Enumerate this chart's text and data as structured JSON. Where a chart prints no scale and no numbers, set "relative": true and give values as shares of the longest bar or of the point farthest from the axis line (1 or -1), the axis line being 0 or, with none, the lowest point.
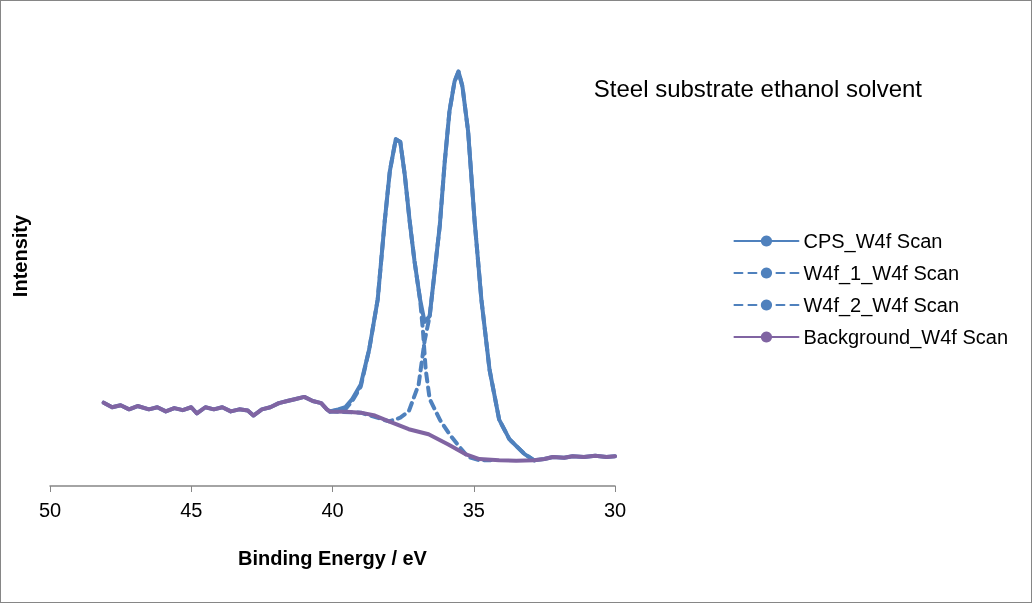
{
  "chart_data": {
    "type": "line",
    "title": "Steel substrate ethanol solvent",
    "xlabel": "Binding Energy / eV",
    "ylabel": "Intensity",
    "relative": true,
    "xlim": [
      50,
      30
    ],
    "xticks": [
      50,
      45,
      40,
      35,
      30
    ],
    "grid": false,
    "legend": "right",
    "marker": "none",
    "series": [
      {
        "name": "CPS_W4f Scan",
        "color": "#4f81bd",
        "line_style": "solid",
        "x": [
          48.1,
          47.8,
          47.5,
          47.2,
          46.9,
          46.5,
          46.2,
          45.9,
          45.6,
          45.3,
          45.0,
          44.8,
          44.5,
          44.2,
          43.9,
          43.6,
          43.3,
          43.0,
          42.8,
          42.5,
          42.2,
          41.9,
          41.6,
          41.3,
          41.0,
          40.7,
          40.4,
          40.2,
          40.1,
          39.8,
          39.55,
          39.3,
          39.0,
          38.7,
          38.4,
          38.15,
          37.97,
          37.76,
          37.6,
          37.44,
          37.27,
          37.1,
          36.9,
          36.74,
          36.56,
          36.38,
          36.2,
          36.03,
          35.86,
          35.68,
          35.54,
          35.4,
          35.2,
          34.97,
          34.73,
          34.44,
          34.1,
          33.74,
          33.2,
          32.86,
          32.5,
          32.2,
          31.8,
          31.5,
          31.1,
          30.7,
          30.3,
          30.0
        ],
        "values": [
          0.201,
          0.19,
          0.195,
          0.185,
          0.193,
          0.185,
          0.19,
          0.18,
          0.188,
          0.183,
          0.19,
          0.175,
          0.19,
          0.185,
          0.19,
          0.18,
          0.185,
          0.182,
          0.17,
          0.185,
          0.19,
          0.2,
          0.205,
          0.21,
          0.215,
          0.205,
          0.2,
          0.185,
          0.18,
          0.185,
          0.19,
          0.21,
          0.245,
          0.33,
          0.45,
          0.64,
          0.76,
          0.837,
          0.83,
          0.75,
          0.64,
          0.544,
          0.45,
          0.396,
          0.41,
          0.52,
          0.63,
          0.78,
          0.904,
          0.976,
          1,
          0.964,
          0.856,
          0.64,
          0.45,
          0.28,
          0.16,
          0.113,
          0.077,
          0.062,
          0.065,
          0.07,
          0.068,
          0.072,
          0.07,
          0.073,
          0.07,
          0.072
        ]
      },
      {
        "name": "W4f_1_W4f Scan",
        "color": "#4f81bd",
        "line_style": "dashed",
        "x": [
          40.1,
          39.55,
          39.3,
          39.0,
          38.7,
          38.4,
          38.15,
          37.97,
          37.76,
          37.6,
          37.44,
          37.27,
          37.1,
          36.9,
          36.8,
          36.7,
          36.56,
          36.2,
          35.86,
          35.5,
          35.2,
          34.8,
          34.4
        ],
        "values": [
          0.18,
          0.185,
          0.205,
          0.24,
          0.33,
          0.45,
          0.64,
          0.76,
          0.837,
          0.83,
          0.75,
          0.64,
          0.544,
          0.45,
          0.376,
          0.28,
          0.21,
          0.16,
          0.125,
          0.094,
          0.07,
          0.062,
          0.062
        ]
      },
      {
        "name": "W4f_2_W4f Scan",
        "color": "#4f81bd",
        "line_style": "dashed",
        "x": [
          40.1,
          39.0,
          38.0,
          37.8,
          37.6,
          37.3,
          36.95,
          36.74,
          36.56,
          36.38,
          36.2,
          36.03,
          35.86,
          35.68,
          35.54,
          35.4,
          35.2,
          34.97,
          34.73,
          34.44,
          34.1,
          33.74,
          33.2,
          32.86
        ],
        "values": [
          0.18,
          0.177,
          0.156,
          0.16,
          0.165,
          0.18,
          0.245,
          0.35,
          0.41,
          0.52,
          0.63,
          0.78,
          0.904,
          0.976,
          1,
          0.964,
          0.856,
          0.64,
          0.45,
          0.28,
          0.16,
          0.113,
          0.077,
          0.062
        ]
      },
      {
        "name": "Background_W4f Scan",
        "color": "#8064a2",
        "line_style": "solid",
        "x": [
          48.1,
          47.8,
          47.5,
          47.2,
          46.9,
          46.5,
          46.2,
          45.9,
          45.6,
          45.3,
          45.0,
          44.8,
          44.5,
          44.2,
          43.9,
          43.6,
          43.3,
          43.0,
          42.8,
          42.5,
          42.2,
          41.9,
          41.6,
          41.3,
          41.0,
          40.7,
          40.4,
          40.2,
          40.1,
          39.5,
          39.0,
          38.5,
          38.0,
          37.3,
          36.6,
          35.9,
          35.3,
          34.8,
          34.1,
          33.5,
          32.86,
          32.5,
          32.2,
          31.8,
          31.5,
          31.1,
          30.7,
          30.3,
          30.0
        ],
        "values": [
          0.201,
          0.19,
          0.195,
          0.185,
          0.193,
          0.185,
          0.19,
          0.18,
          0.188,
          0.183,
          0.19,
          0.175,
          0.19,
          0.185,
          0.19,
          0.18,
          0.185,
          0.182,
          0.17,
          0.185,
          0.19,
          0.2,
          0.205,
          0.21,
          0.215,
          0.205,
          0.2,
          0.185,
          0.18,
          0.179,
          0.177,
          0.17,
          0.156,
          0.137,
          0.125,
          0.1,
          0.077,
          0.065,
          0.062,
          0.061,
          0.062,
          0.065,
          0.07,
          0.068,
          0.072,
          0.07,
          0.073,
          0.07,
          0.072
        ]
      }
    ]
  }
}
